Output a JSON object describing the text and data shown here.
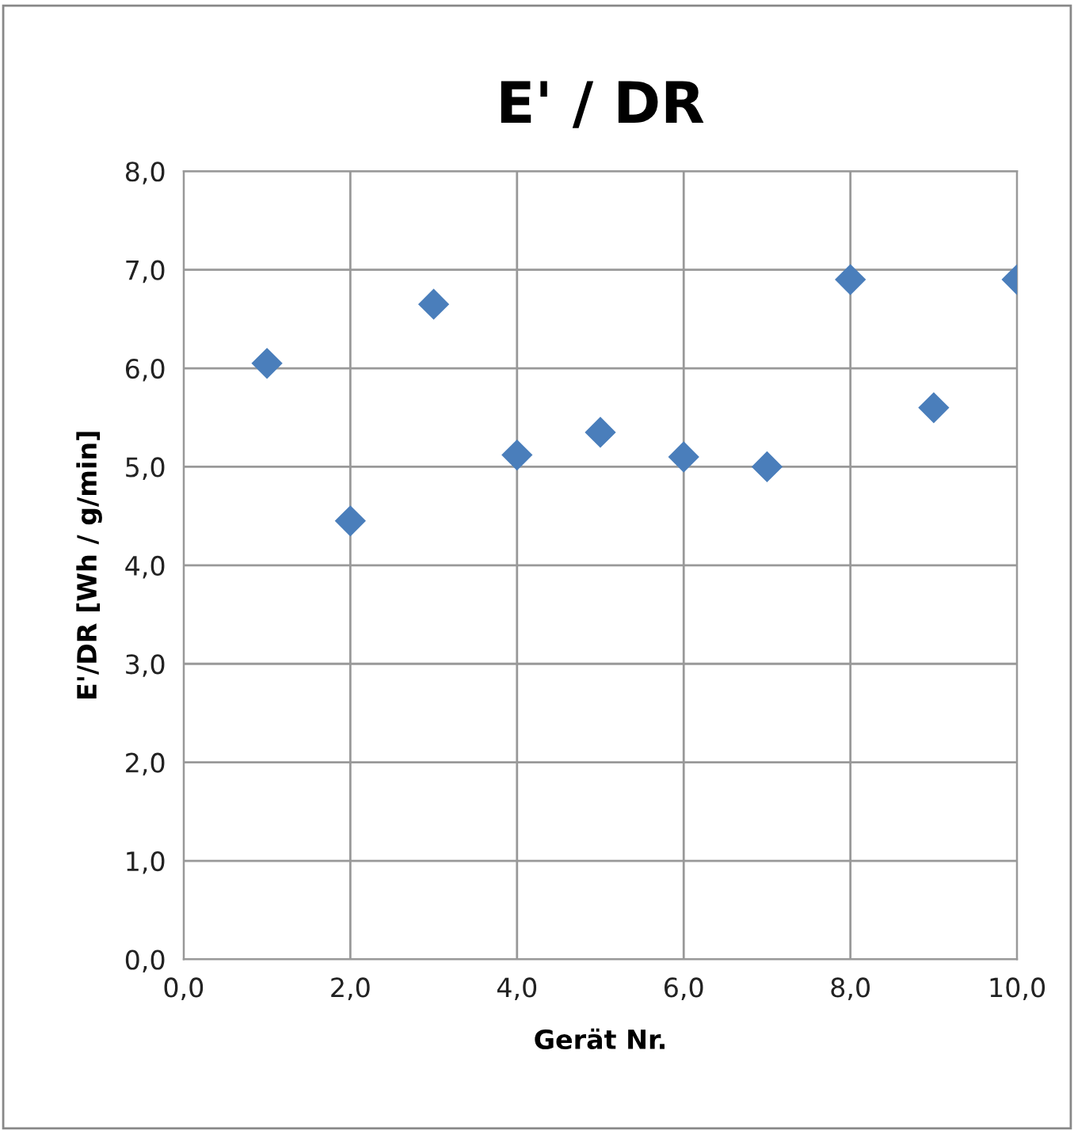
{
  "chart_data": {
    "type": "scatter",
    "title": "E' / DR",
    "xlabel": "Gerät Nr.",
    "ylabel": "E'/DR [Wh / g/min]",
    "x": [
      1,
      2,
      3,
      4,
      5,
      6,
      7,
      8,
      9,
      10
    ],
    "series": [
      {
        "color": "#4a7ebb",
        "values": [
          6.05,
          4.45,
          6.65,
          5.12,
          5.35,
          5.1,
          5.0,
          6.9,
          5.6,
          6.9
        ]
      }
    ],
    "xlim": [
      0,
      10
    ],
    "ylim": [
      0,
      8
    ],
    "xticks": [
      {
        "value": 0,
        "label": "0,0"
      },
      {
        "value": 2,
        "label": "2,0"
      },
      {
        "value": 4,
        "label": "4,0"
      },
      {
        "value": 6,
        "label": "6,0"
      },
      {
        "value": 8,
        "label": "8,0"
      },
      {
        "value": 10,
        "label": "10,0"
      }
    ],
    "yticks": [
      {
        "value": 0,
        "label": "0,0"
      },
      {
        "value": 1,
        "label": "1,0"
      },
      {
        "value": 2,
        "label": "2,0"
      },
      {
        "value": 3,
        "label": "3,0"
      },
      {
        "value": 4,
        "label": "4,0"
      },
      {
        "value": 5,
        "label": "5,0"
      },
      {
        "value": 6,
        "label": "6,0"
      },
      {
        "value": 7,
        "label": "7,0"
      },
      {
        "value": 8,
        "label": "8,0"
      }
    ],
    "grid": true,
    "marker": "diamond"
  }
}
